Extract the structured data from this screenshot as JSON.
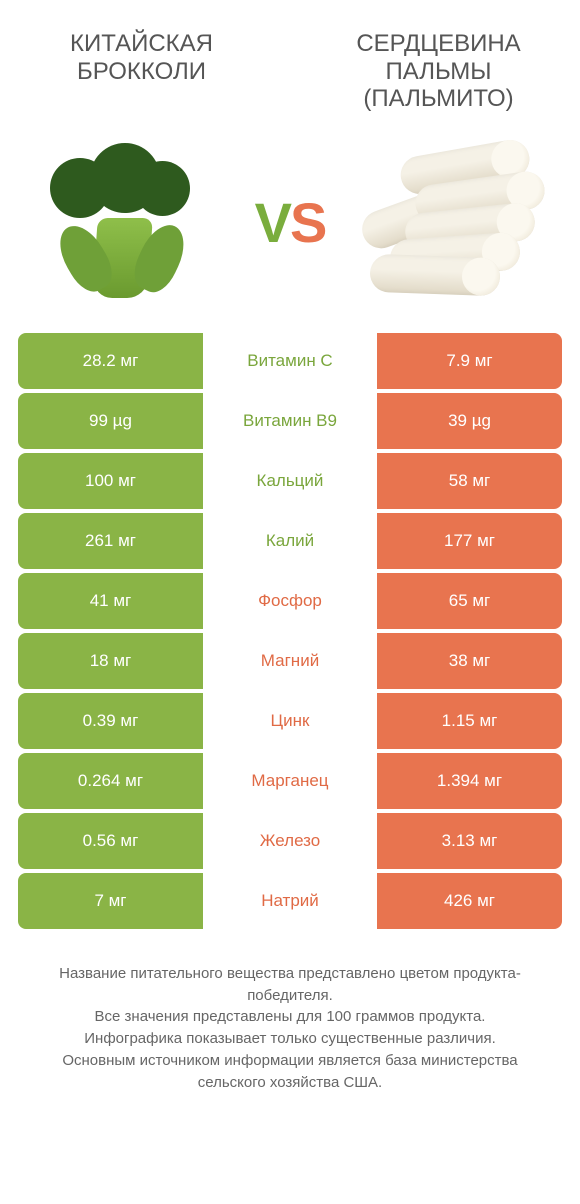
{
  "colors": {
    "green": "#8ab446",
    "orange": "#e8744f",
    "text_green": "#7aa63c",
    "text_orange": "#e06a45"
  },
  "left_title": "КИТАЙСКАЯ БРОККОЛИ",
  "right_title": "СЕРДЦЕВИНА ПАЛЬМЫ (ПАЛЬМИТО)",
  "vs_v": "V",
  "vs_s": "S",
  "rows": [
    {
      "name": "Витамин C",
      "winner": "left",
      "left": "28.2 мг",
      "right": "7.9 мг"
    },
    {
      "name": "Витамин B9",
      "winner": "left",
      "left": "99 µg",
      "right": "39 µg"
    },
    {
      "name": "Кальций",
      "winner": "left",
      "left": "100 мг",
      "right": "58 мг"
    },
    {
      "name": "Калий",
      "winner": "left",
      "left": "261 мг",
      "right": "177 мг"
    },
    {
      "name": "Фосфор",
      "winner": "right",
      "left": "41 мг",
      "right": "65 мг"
    },
    {
      "name": "Магний",
      "winner": "right",
      "left": "18 мг",
      "right": "38 мг"
    },
    {
      "name": "Цинк",
      "winner": "right",
      "left": "0.39 мг",
      "right": "1.15 мг"
    },
    {
      "name": "Марганец",
      "winner": "right",
      "left": "0.264 мг",
      "right": "1.394 мг"
    },
    {
      "name": "Железо",
      "winner": "right",
      "left": "0.56 мг",
      "right": "3.13 мг"
    },
    {
      "name": "Натрий",
      "winner": "right",
      "left": "7 мг",
      "right": "426 мг"
    }
  ],
  "footer": "Название питательного вещества представлено цветом продукта-победителя.\nВсе значения представлены для 100 граммов продукта.\nИнфографика показывает только существенные различия.\nОсновным источником информации является база министерства сельского хозяйства США."
}
